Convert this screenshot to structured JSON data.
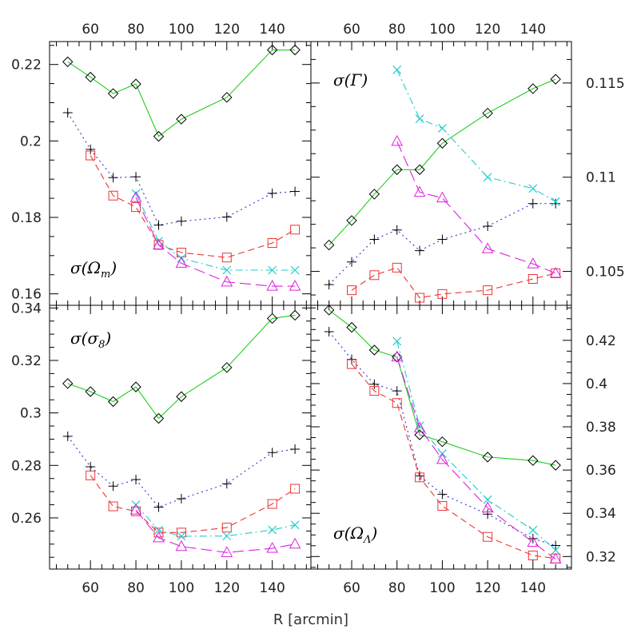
{
  "figure": {
    "xlabel": "R [arcmin]",
    "top_x_ticks": [
      "60",
      "80",
      "100",
      "120",
      "140"
    ],
    "bottom_x_ticks": [
      "60",
      "80",
      "100",
      "120",
      "140"
    ]
  },
  "chart_data": [
    {
      "type": "line",
      "panel": "top-left",
      "label_base": "σ(Ω",
      "label_sub": "m",
      "label_end": ")",
      "xlim": [
        42,
        157
      ],
      "ylim": [
        0.157,
        0.226
      ],
      "y_axis_side": "left",
      "y_ticks": [
        "0.16",
        "0.18",
        "0.2",
        "0.22"
      ],
      "y_tick_values": [
        0.16,
        0.18,
        0.2,
        0.22
      ],
      "series": [
        {
          "color": "#22cc22",
          "marker": "diamond",
          "dash": "solid",
          "x": [
            50,
            60,
            70,
            80,
            90,
            100,
            120,
            140,
            150
          ],
          "y": [
            0.2207,
            0.2167,
            0.2124,
            0.2149,
            0.2012,
            0.2057,
            0.2114,
            0.2238,
            0.2238
          ]
        },
        {
          "color": "#3333cc",
          "marker": "plus",
          "dash": "dotted",
          "x": [
            50,
            60,
            70,
            80,
            90,
            100,
            120,
            140,
            150
          ],
          "y": [
            0.2074,
            0.1978,
            0.1904,
            0.1906,
            0.178,
            0.179,
            0.1801,
            0.1863,
            0.1868
          ]
        },
        {
          "color": "#ee3333",
          "marker": "square",
          "dash": "dashed",
          "x": [
            60,
            70,
            80,
            90,
            100,
            120,
            140,
            150
          ],
          "y": [
            0.1962,
            0.1857,
            0.1827,
            0.1728,
            0.1708,
            0.1695,
            0.1733,
            0.1768
          ]
        },
        {
          "color": "#22cccc",
          "marker": "cross",
          "dash": "dashdot",
          "x": [
            80,
            90,
            100,
            120,
            140,
            150
          ],
          "y": [
            0.1862,
            0.1738,
            0.1693,
            0.1662,
            0.1662,
            0.1662
          ]
        },
        {
          "color": "#dd22dd",
          "marker": "triangle",
          "dash": "longdash",
          "x": [
            80,
            90,
            100,
            120,
            140,
            150
          ],
          "y": [
            0.1852,
            0.1728,
            0.168,
            0.1631,
            0.162,
            0.162
          ]
        }
      ]
    },
    {
      "type": "line",
      "panel": "top-right",
      "label_base": "σ(Γ",
      "label_sub": "",
      "label_end": ")",
      "xlim": [
        42,
        157
      ],
      "ylim": [
        0.1032,
        0.1172
      ],
      "y_axis_side": "right",
      "y_ticks": [
        "0.105",
        "0.11",
        "0.115"
      ],
      "y_tick_values": [
        0.105,
        0.11,
        0.115
      ],
      "series": [
        {
          "color": "#22cc22",
          "marker": "diamond",
          "dash": "solid",
          "x": [
            50,
            60,
            70,
            80,
            90,
            100,
            120,
            140,
            150
          ],
          "y": [
            0.1064,
            0.1077,
            0.1091,
            0.1104,
            0.1104,
            0.1118,
            0.1134,
            0.1147,
            0.1152
          ]
        },
        {
          "color": "#3333cc",
          "marker": "plus",
          "dash": "dotted",
          "x": [
            50,
            60,
            70,
            80,
            90,
            100,
            120,
            140,
            150
          ],
          "y": [
            0.1043,
            0.1055,
            0.1067,
            0.1072,
            0.1061,
            0.1067,
            0.1074,
            0.1086,
            0.1086
          ]
        },
        {
          "color": "#ee3333",
          "marker": "square",
          "dash": "dashed",
          "x": [
            60,
            70,
            80,
            90,
            100,
            120,
            140,
            150
          ],
          "y": [
            0.104,
            0.1048,
            0.1052,
            0.1036,
            0.1038,
            0.104,
            0.1046,
            0.1049
          ]
        },
        {
          "color": "#22cccc",
          "marker": "cross",
          "dash": "dashdot",
          "x": [
            80,
            90,
            100,
            120,
            140,
            150
          ],
          "y": [
            0.1157,
            0.1131,
            0.1126,
            0.11,
            0.1094,
            0.1087
          ]
        },
        {
          "color": "#dd22dd",
          "marker": "triangle",
          "dash": "longdash",
          "x": [
            80,
            90,
            100,
            120,
            140,
            150
          ],
          "y": [
            0.1119,
            0.1092,
            0.1089,
            0.1062,
            0.1054,
            0.1049
          ]
        }
      ]
    },
    {
      "type": "line",
      "panel": "bottom-left",
      "label_base": "σ(σ",
      "label_sub": "8",
      "label_end": ")",
      "xlim": [
        42,
        157
      ],
      "ylim": [
        0.2405,
        0.341
      ],
      "y_axis_side": "left",
      "y_ticks": [
        "0.26",
        "0.28",
        "0.3",
        "0.32",
        "0.34"
      ],
      "y_tick_values": [
        0.26,
        0.28,
        0.3,
        0.32,
        0.34
      ],
      "series": [
        {
          "color": "#22cc22",
          "marker": "diamond",
          "dash": "solid",
          "x": [
            50,
            60,
            70,
            80,
            90,
            100,
            120,
            140,
            150
          ],
          "y": [
            0.3112,
            0.3081,
            0.3043,
            0.3099,
            0.2979,
            0.3062,
            0.3173,
            0.336,
            0.3372
          ]
        },
        {
          "color": "#3333cc",
          "marker": "plus",
          "dash": "dotted",
          "x": [
            50,
            60,
            70,
            80,
            90,
            100,
            120,
            140,
            150
          ],
          "y": [
            0.2911,
            0.2795,
            0.2721,
            0.2746,
            0.2641,
            0.2673,
            0.273,
            0.2849,
            0.2862
          ]
        },
        {
          "color": "#ee3333",
          "marker": "square",
          "dash": "dashed",
          "x": [
            60,
            70,
            80,
            90,
            100,
            120,
            140,
            150
          ],
          "y": [
            0.2762,
            0.2644,
            0.2625,
            0.2544,
            0.2544,
            0.2563,
            0.2653,
            0.2711
          ]
        },
        {
          "color": "#22cccc",
          "marker": "cross",
          "dash": "dashdot",
          "x": [
            80,
            90,
            100,
            120,
            140,
            150
          ],
          "y": [
            0.265,
            0.2553,
            0.253,
            0.2531,
            0.2554,
            0.2573
          ]
        },
        {
          "color": "#dd22dd",
          "marker": "triangle",
          "dash": "longdash",
          "x": [
            80,
            90,
            100,
            120,
            140,
            150
          ],
          "y": [
            0.263,
            0.2524,
            0.2491,
            0.2468,
            0.2484,
            0.25
          ]
        }
      ]
    },
    {
      "type": "line",
      "panel": "bottom-right",
      "label_base": "σ(Ω",
      "label_sub": "Λ",
      "label_end": ")",
      "xlim": [
        42,
        157
      ],
      "ylim": [
        0.3142,
        0.4362
      ],
      "y_axis_side": "right",
      "y_ticks": [
        "0.32",
        "0.34",
        "0.36",
        "0.38",
        "0.4",
        "0.42"
      ],
      "y_tick_values": [
        0.32,
        0.34,
        0.36,
        0.38,
        0.4,
        0.42
      ],
      "series": [
        {
          "color": "#22cc22",
          "marker": "diamond",
          "dash": "solid",
          "x": [
            50,
            60,
            70,
            80,
            90,
            100,
            120,
            140,
            150
          ],
          "y": [
            0.434,
            0.426,
            0.4155,
            0.4123,
            0.3763,
            0.3731,
            0.366,
            0.3644,
            0.3622
          ]
        },
        {
          "color": "#3333cc",
          "marker": "plus",
          "dash": "dotted",
          "x": [
            50,
            60,
            70,
            80,
            90,
            100,
            120,
            140,
            150
          ],
          "y": [
            0.424,
            0.4112,
            0.3997,
            0.3966,
            0.3573,
            0.3488,
            0.3396,
            0.3283,
            0.3251
          ]
        },
        {
          "color": "#ee3333",
          "marker": "square",
          "dash": "dashed",
          "x": [
            60,
            70,
            80,
            90,
            100,
            120,
            140,
            150
          ],
          "y": [
            0.409,
            0.3966,
            0.391,
            0.3566,
            0.3434,
            0.3291,
            0.3205,
            0.3191
          ]
        },
        {
          "color": "#22cccc",
          "marker": "cross",
          "dash": "dashdot",
          "x": [
            80,
            90,
            100,
            120,
            140,
            150
          ],
          "y": [
            0.4196,
            0.3804,
            0.3676,
            0.3463,
            0.3322,
            0.3229
          ]
        },
        {
          "color": "#dd22dd",
          "marker": "triangle",
          "dash": "longdash",
          "x": [
            80,
            90,
            100,
            120,
            140,
            150
          ],
          "y": [
            0.4123,
            0.3795,
            0.3649,
            0.3425,
            0.3266,
            0.3188
          ]
        }
      ]
    }
  ]
}
